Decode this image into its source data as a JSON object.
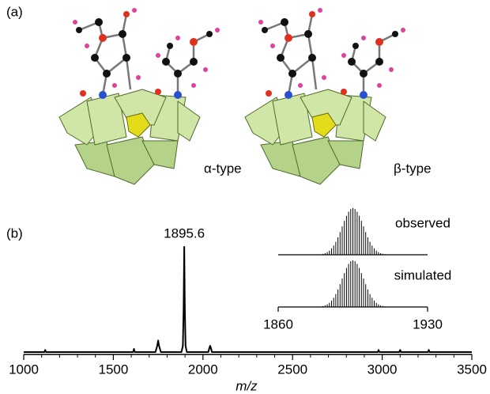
{
  "panel_labels": [
    "(a)",
    "(b)"
  ],
  "structures": [
    {
      "label": "α-type"
    },
    {
      "label": "β-type"
    }
  ],
  "chart_data": [
    {
      "type": "line",
      "xlabel": "m/z",
      "peak_label": 1895.6,
      "color": "#000000",
      "x": [
        1000,
        1115,
        1120,
        1125,
        1610,
        1615,
        1620,
        1735,
        1745,
        1750,
        1755,
        1765,
        1880,
        1888,
        1892,
        1895.6,
        1899,
        1903,
        1910,
        2030,
        2036,
        2040,
        2044,
        2050,
        2975,
        2980,
        2985,
        3095,
        3100,
        3105,
        3255,
        3260,
        3265,
        3500
      ],
      "values": [
        0,
        0,
        2,
        0,
        0,
        3,
        0,
        0,
        6,
        11,
        6,
        0,
        0,
        6,
        40,
        100,
        40,
        6,
        0,
        0,
        4,
        6,
        4,
        0,
        0,
        2,
        0,
        0,
        2,
        0,
        0,
        2,
        0,
        0
      ],
      "xlim": [
        1000,
        3500
      ],
      "xticks": [
        1000,
        1500,
        2000,
        2500,
        3000,
        3500
      ],
      "ylim": [
        0,
        100
      ]
    },
    {
      "type": "stick",
      "x": [
        1878,
        1879,
        1880,
        1881,
        1882,
        1883,
        1884,
        1885,
        1886,
        1887,
        1888,
        1889,
        1890,
        1891,
        1892,
        1893,
        1894,
        1895,
        1896,
        1897,
        1898,
        1899,
        1900,
        1901,
        1902,
        1903,
        1904,
        1905,
        1906,
        1907,
        1908,
        1909,
        1910,
        1911,
        1912
      ],
      "series": [
        {
          "name": "observed",
          "color": "#000000",
          "values": [
            0.3,
            0.6,
            1.1,
            2.0,
            3.4,
            5.6,
            8.9,
            13.5,
            19.8,
            27.8,
            37.5,
            48.7,
            60.7,
            72.6,
            83.5,
            92.3,
            98.0,
            100,
            98.0,
            92.3,
            83.5,
            72.6,
            60.7,
            48.7,
            37.5,
            27.8,
            19.8,
            13.5,
            8.9,
            5.6,
            3.4,
            2.0,
            1.1,
            0.6,
            0.3
          ]
        },
        {
          "name": "simulated",
          "color": "#000000",
          "values": [
            0.3,
            0.6,
            1.1,
            2.0,
            3.4,
            5.6,
            8.9,
            13.5,
            19.8,
            27.8,
            37.5,
            48.7,
            60.7,
            72.6,
            83.5,
            92.3,
            98.0,
            100,
            98.0,
            92.3,
            83.5,
            72.6,
            60.7,
            48.7,
            37.5,
            27.8,
            19.8,
            13.5,
            8.9,
            5.6,
            3.4,
            2.0,
            1.1,
            0.6,
            0.3
          ]
        }
      ],
      "xlim": [
        1860,
        1930
      ],
      "xticks": [
        1860,
        1930
      ],
      "ylim": [
        0,
        100
      ]
    }
  ]
}
